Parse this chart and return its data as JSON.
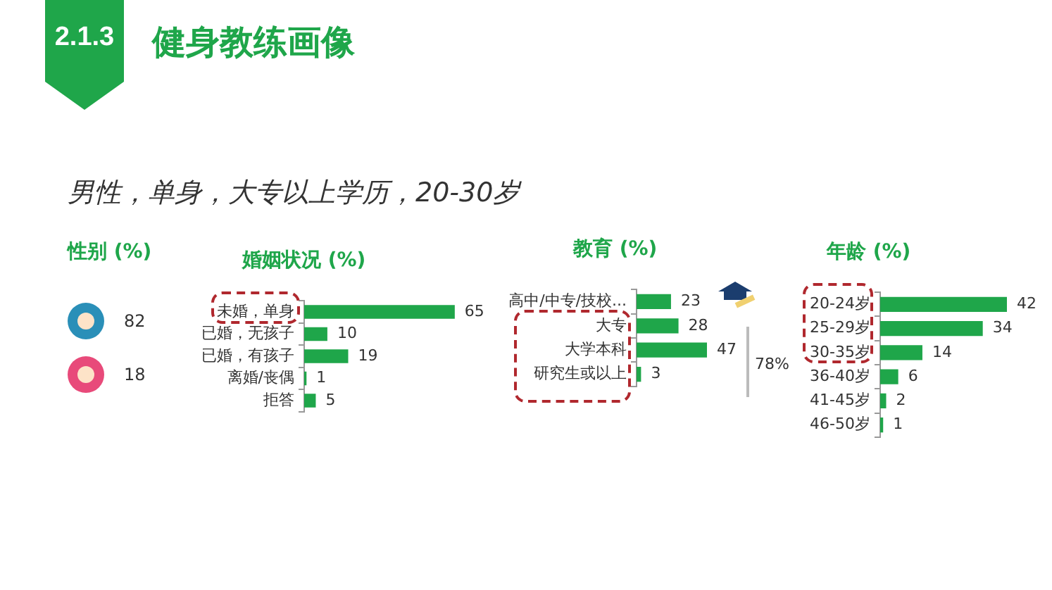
{
  "chart_data": [
    {
      "type": "other",
      "title": "健身教练画像",
      "subtitle": "男性，单身，大专以上学历，20-30岁",
      "annotations": [
        "2.1.3"
      ]
    },
    {
      "type": "other",
      "title": "性别 (%)",
      "categories": [
        null,
        null
      ],
      "values": [
        82,
        18
      ],
      "data_labels": true
    },
    {
      "type": "bar",
      "orientation": "horizontal",
      "title": "婚姻状况 (%)",
      "categories": [
        "未婚，单身",
        "已婚，无孩子",
        "已婚，有孩子",
        "离婚/丧偶",
        "拒答"
      ],
      "values": [
        65,
        10,
        19,
        1,
        5
      ],
      "color": "#1fa64a",
      "data_labels": true
    },
    {
      "type": "bar",
      "orientation": "horizontal",
      "title": "教育 (%)",
      "categories": [
        "高中/中专/技校...",
        "大专",
        "大学本科",
        "研究生或以上"
      ],
      "values": [
        23,
        28,
        47,
        3
      ],
      "color": "#1fa64a",
      "data_labels": true,
      "annotations": [
        "78%"
      ]
    },
    {
      "type": "bar",
      "orientation": "horizontal",
      "title": "年龄 (%)",
      "categories": [
        "20-24岁",
        "25-29岁",
        "30-35岁",
        "36-40岁",
        "41-45岁",
        "46-50岁"
      ],
      "values": [
        42,
        34,
        14,
        6,
        2,
        1
      ],
      "color": "#1fa64a",
      "data_labels": true
    }
  ]
}
